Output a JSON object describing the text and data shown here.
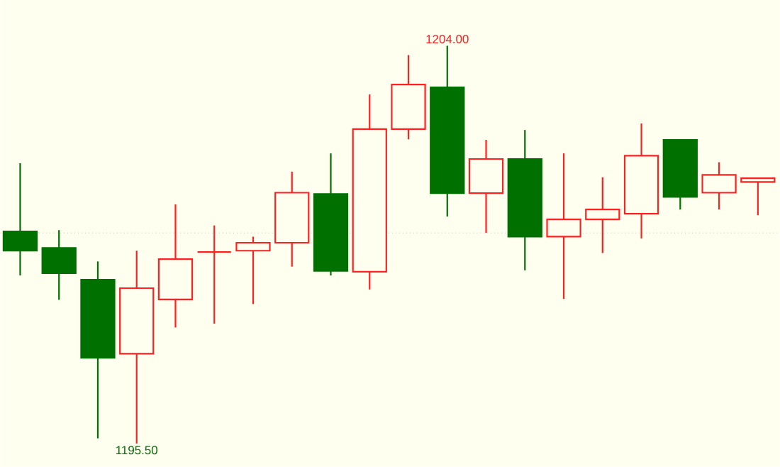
{
  "chart_data": {
    "type": "candlestick",
    "categories": [
      null,
      null,
      null,
      null,
      null,
      null,
      null,
      null,
      null,
      null,
      null,
      null,
      null,
      null,
      null,
      null,
      null,
      null,
      null,
      null
    ],
    "ohlc": [
      [
        1200.03,
        1201.49,
        1199.09,
        1199.62
      ],
      [
        1199.68,
        1200.06,
        1198.57,
        1199.14
      ],
      [
        1199.0,
        1199.39,
        1195.61,
        1197.33
      ],
      [
        1197.42,
        1199.62,
        1195.5,
        1198.82
      ],
      [
        1198.58,
        1200.61,
        1197.98,
        1199.44
      ],
      [
        1199.59,
        1200.16,
        1198.06,
        1199.59
      ],
      [
        1199.62,
        1199.92,
        1198.48,
        1199.79
      ],
      [
        1199.79,
        1201.31,
        1199.28,
        1200.86
      ],
      [
        1200.83,
        1201.7,
        1199.09,
        1199.19
      ],
      [
        1199.17,
        1202.96,
        1198.79,
        1202.22
      ],
      [
        1202.22,
        1203.8,
        1202.0,
        1203.17
      ],
      [
        1203.11,
        1204.0,
        1200.35,
        1200.85
      ],
      [
        1200.85,
        1201.99,
        1200.0,
        1201.58
      ],
      [
        1201.58,
        1202.2,
        1199.2,
        1199.92
      ],
      [
        1199.92,
        1201.7,
        1198.59,
        1200.29
      ],
      [
        1200.29,
        1201.19,
        1199.57,
        1200.5
      ],
      [
        1200.41,
        1202.34,
        1199.88,
        1201.65
      ],
      [
        1201.99,
        1201.99,
        1200.5,
        1200.77
      ],
      [
        1200.86,
        1201.51,
        1200.5,
        1201.24
      ],
      [
        1201.09,
        1201.17,
        1200.38,
        1201.17
      ]
    ],
    "colors": [
      "#007000",
      "#007000",
      "#007000",
      "#ff2020",
      "#ff2020",
      "#ff2020",
      "#ff2020",
      "#ff2020",
      "#007000",
      "#ff2020",
      "#ff2020",
      "#007000",
      "#ff2020",
      "#007000",
      "#ff2020",
      "#ff2020",
      "#ff2020",
      "#007000",
      "#ff2020",
      "#ff2020"
    ],
    "ref_lines": [
      {
        "axis": "y",
        "value": 1200.0,
        "color": "#c0c0c0",
        "line_style": "dotted"
      }
    ],
    "annotations": [
      {
        "text": "1204.00",
        "y": 1204.0
      },
      {
        "text": "1195.50",
        "y": 1195.5
      }
    ]
  }
}
